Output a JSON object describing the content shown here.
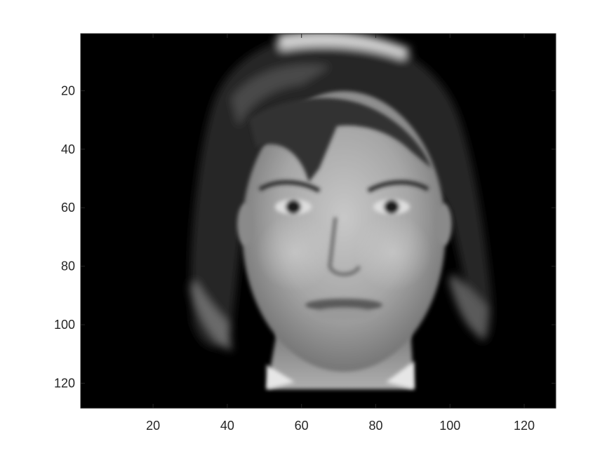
{
  "chart_data": {
    "type": "heatmap",
    "title": "",
    "xlabel": "",
    "ylabel": "",
    "colormap": "gray",
    "xlim": [
      0.5,
      128.5
    ],
    "ylim": [
      0.5,
      128.5
    ],
    "y_direction": "reverse",
    "x_ticks": [
      20,
      40,
      60,
      80,
      100,
      120
    ],
    "y_ticks": [
      20,
      40,
      60,
      80,
      100,
      120
    ],
    "x_tick_labels": [
      "20",
      "40",
      "60",
      "80",
      "100",
      "120"
    ],
    "y_tick_labels": [
      "20",
      "40",
      "60",
      "80",
      "100",
      "120"
    ],
    "image_content": "grayscale face image, 128 x 128 pixels",
    "background_value": "black"
  },
  "colors": {
    "axis": "#262626",
    "background": "#000000"
  }
}
